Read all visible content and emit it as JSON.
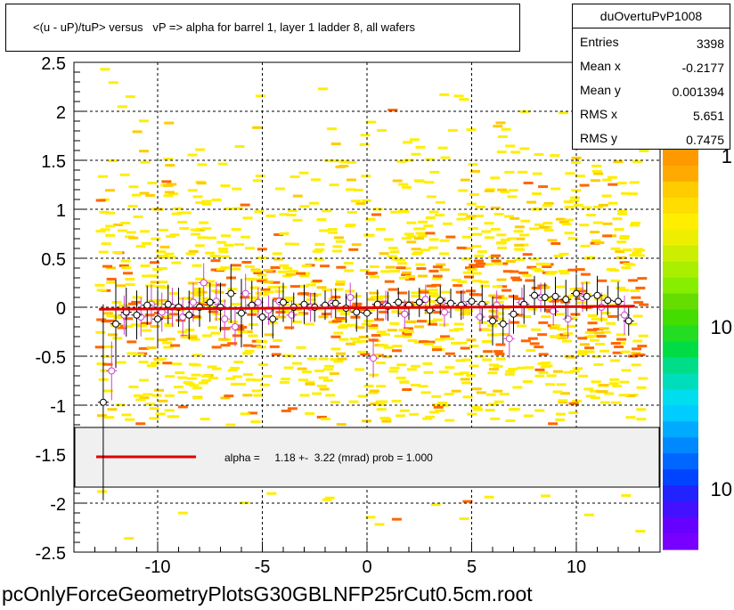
{
  "title": "<(u - uP)/tuP> versus   vP => alpha for barrel 1, layer 1 ladder 8, all wafers",
  "stats": {
    "name": "duOvertuPvP1008",
    "rows": [
      {
        "key": "Entries",
        "value": "3398"
      },
      {
        "key": "Mean x",
        "value": "-0.2177"
      },
      {
        "key": "Mean y",
        "value": "0.001394"
      },
      {
        "key": "RMS x",
        "value": "5.651"
      },
      {
        "key": "RMS y",
        "value": "0.7475"
      }
    ]
  },
  "footer": "pcOnlyForceGeometryPlotsG30GBLNFP25rCut0.5cm.root",
  "chart_data": {
    "type": "scatter",
    "title": "<(u - uP)/tuP> versus   vP => alpha for barrel 1, layer 1 ladder 8, all wafers",
    "xlabel": "",
    "ylabel": "",
    "xlim": [
      -14,
      14
    ],
    "ylim": [
      -2.5,
      2.5
    ],
    "x_ticks": [
      -10,
      -5,
      0,
      5,
      10
    ],
    "y_ticks": [
      -2.5,
      -2,
      -1.5,
      -1,
      -0.5,
      0,
      0.5,
      1,
      1.5,
      2,
      2.5
    ],
    "grid": true,
    "colorbar_labels": [
      "1",
      "10",
      "10"
    ],
    "fit": {
      "x": [
        -12.8,
        12.8
      ],
      "y": [
        -0.02,
        0.01
      ],
      "color": "#e00000"
    },
    "legend_text": "alpha =     1.18 +-  3.22 (mrad) prob = 1.000",
    "profile_points": {
      "x": [
        -12.6,
        -12.0,
        -11.5,
        -11.0,
        -10.5,
        -10.0,
        -9.5,
        -9.0,
        -8.5,
        -8.0,
        -7.5,
        -7.0,
        -6.5,
        -6.0,
        -5.5,
        -5.0,
        -4.5,
        -4.0,
        -3.5,
        -3.0,
        -2.5,
        -2.0,
        -1.5,
        -1.0,
        -0.5,
        0.0,
        0.5,
        1.0,
        1.5,
        2.0,
        2.5,
        3.0,
        3.5,
        4.0,
        4.5,
        5.0,
        5.5,
        6.0,
        6.5,
        7.0,
        7.5,
        8.0,
        8.5,
        9.0,
        9.5,
        10.0,
        10.5,
        11.0,
        11.5,
        12.0,
        12.5
      ],
      "y": [
        -0.97,
        -0.17,
        -0.05,
        -0.08,
        0.02,
        -0.12,
        0.03,
        0.0,
        -0.08,
        0.0,
        0.05,
        0.0,
        0.14,
        -0.06,
        0.02,
        -0.1,
        -0.12,
        0.05,
        0.0,
        0.03,
        0.0,
        0.02,
        0.04,
        -0.01,
        -0.05,
        -0.06,
        0.03,
        0.01,
        0.05,
        0.02,
        0.05,
        -0.03,
        0.07,
        0.04,
        0.02,
        0.06,
        0.03,
        -0.14,
        -0.17,
        -0.07,
        0.03,
        0.12,
        0.1,
        0.11,
        0.08,
        0.14,
        0.11,
        0.12,
        0.07,
        0.06,
        -0.14
      ],
      "err": [
        1.0,
        0.45,
        0.25,
        0.25,
        0.2,
        0.3,
        0.2,
        0.2,
        0.25,
        0.2,
        0.2,
        0.25,
        0.3,
        0.35,
        0.25,
        0.2,
        0.2,
        0.2,
        0.15,
        0.2,
        0.15,
        0.15,
        0.15,
        0.15,
        0.2,
        0.2,
        0.15,
        0.15,
        0.15,
        0.15,
        0.15,
        0.15,
        0.15,
        0.15,
        0.15,
        0.15,
        0.2,
        0.25,
        0.2,
        0.2,
        0.2,
        0.2,
        0.15,
        0.2,
        0.2,
        0.2,
        0.15,
        0.2,
        0.15,
        0.2,
        0.15
      ]
    },
    "open_circle_points": {
      "x": [
        -12.2,
        -11.6,
        -10.8,
        -10.3,
        -9.8,
        -9.3,
        -8.8,
        -8.3,
        -7.8,
        -7.2,
        -6.8,
        -6.3,
        -5.8,
        -5.2,
        -4.7,
        -4.2,
        -3.6,
        -2.7,
        -1.7,
        -0.8,
        0.3,
        0.9,
        1.8,
        2.8,
        3.7,
        4.6,
        5.4,
        6.2,
        6.8,
        7.4,
        8.3,
        8.9,
        9.6,
        10.3,
        11.2,
        12.3
      ],
      "y": [
        -0.65,
        -0.08,
        -0.1,
        0.03,
        -0.05,
        0.0,
        -0.1,
        0.05,
        0.25,
        0.06,
        -0.12,
        -0.2,
        0.14,
        0.05,
        -0.03,
        0.06,
        -0.08,
        0.0,
        0.04,
        0.1,
        -0.52,
        0.02,
        -0.07,
        0.08,
        -0.05,
        0.03,
        -0.1,
        0.02,
        -0.32,
        0.05,
        0.1,
        -0.04,
        -0.12,
        0.1,
        0.0,
        -0.08
      ],
      "err": [
        0.3,
        0.2,
        0.2,
        0.2,
        0.2,
        0.2,
        0.2,
        0.2,
        0.2,
        0.2,
        0.2,
        0.2,
        0.2,
        0.15,
        0.15,
        0.15,
        0.15,
        0.15,
        0.15,
        0.15,
        0.2,
        0.15,
        0.15,
        0.15,
        0.15,
        0.15,
        0.15,
        0.15,
        0.2,
        0.15,
        0.15,
        0.15,
        0.2,
        0.15,
        0.15,
        0.2
      ]
    }
  }
}
